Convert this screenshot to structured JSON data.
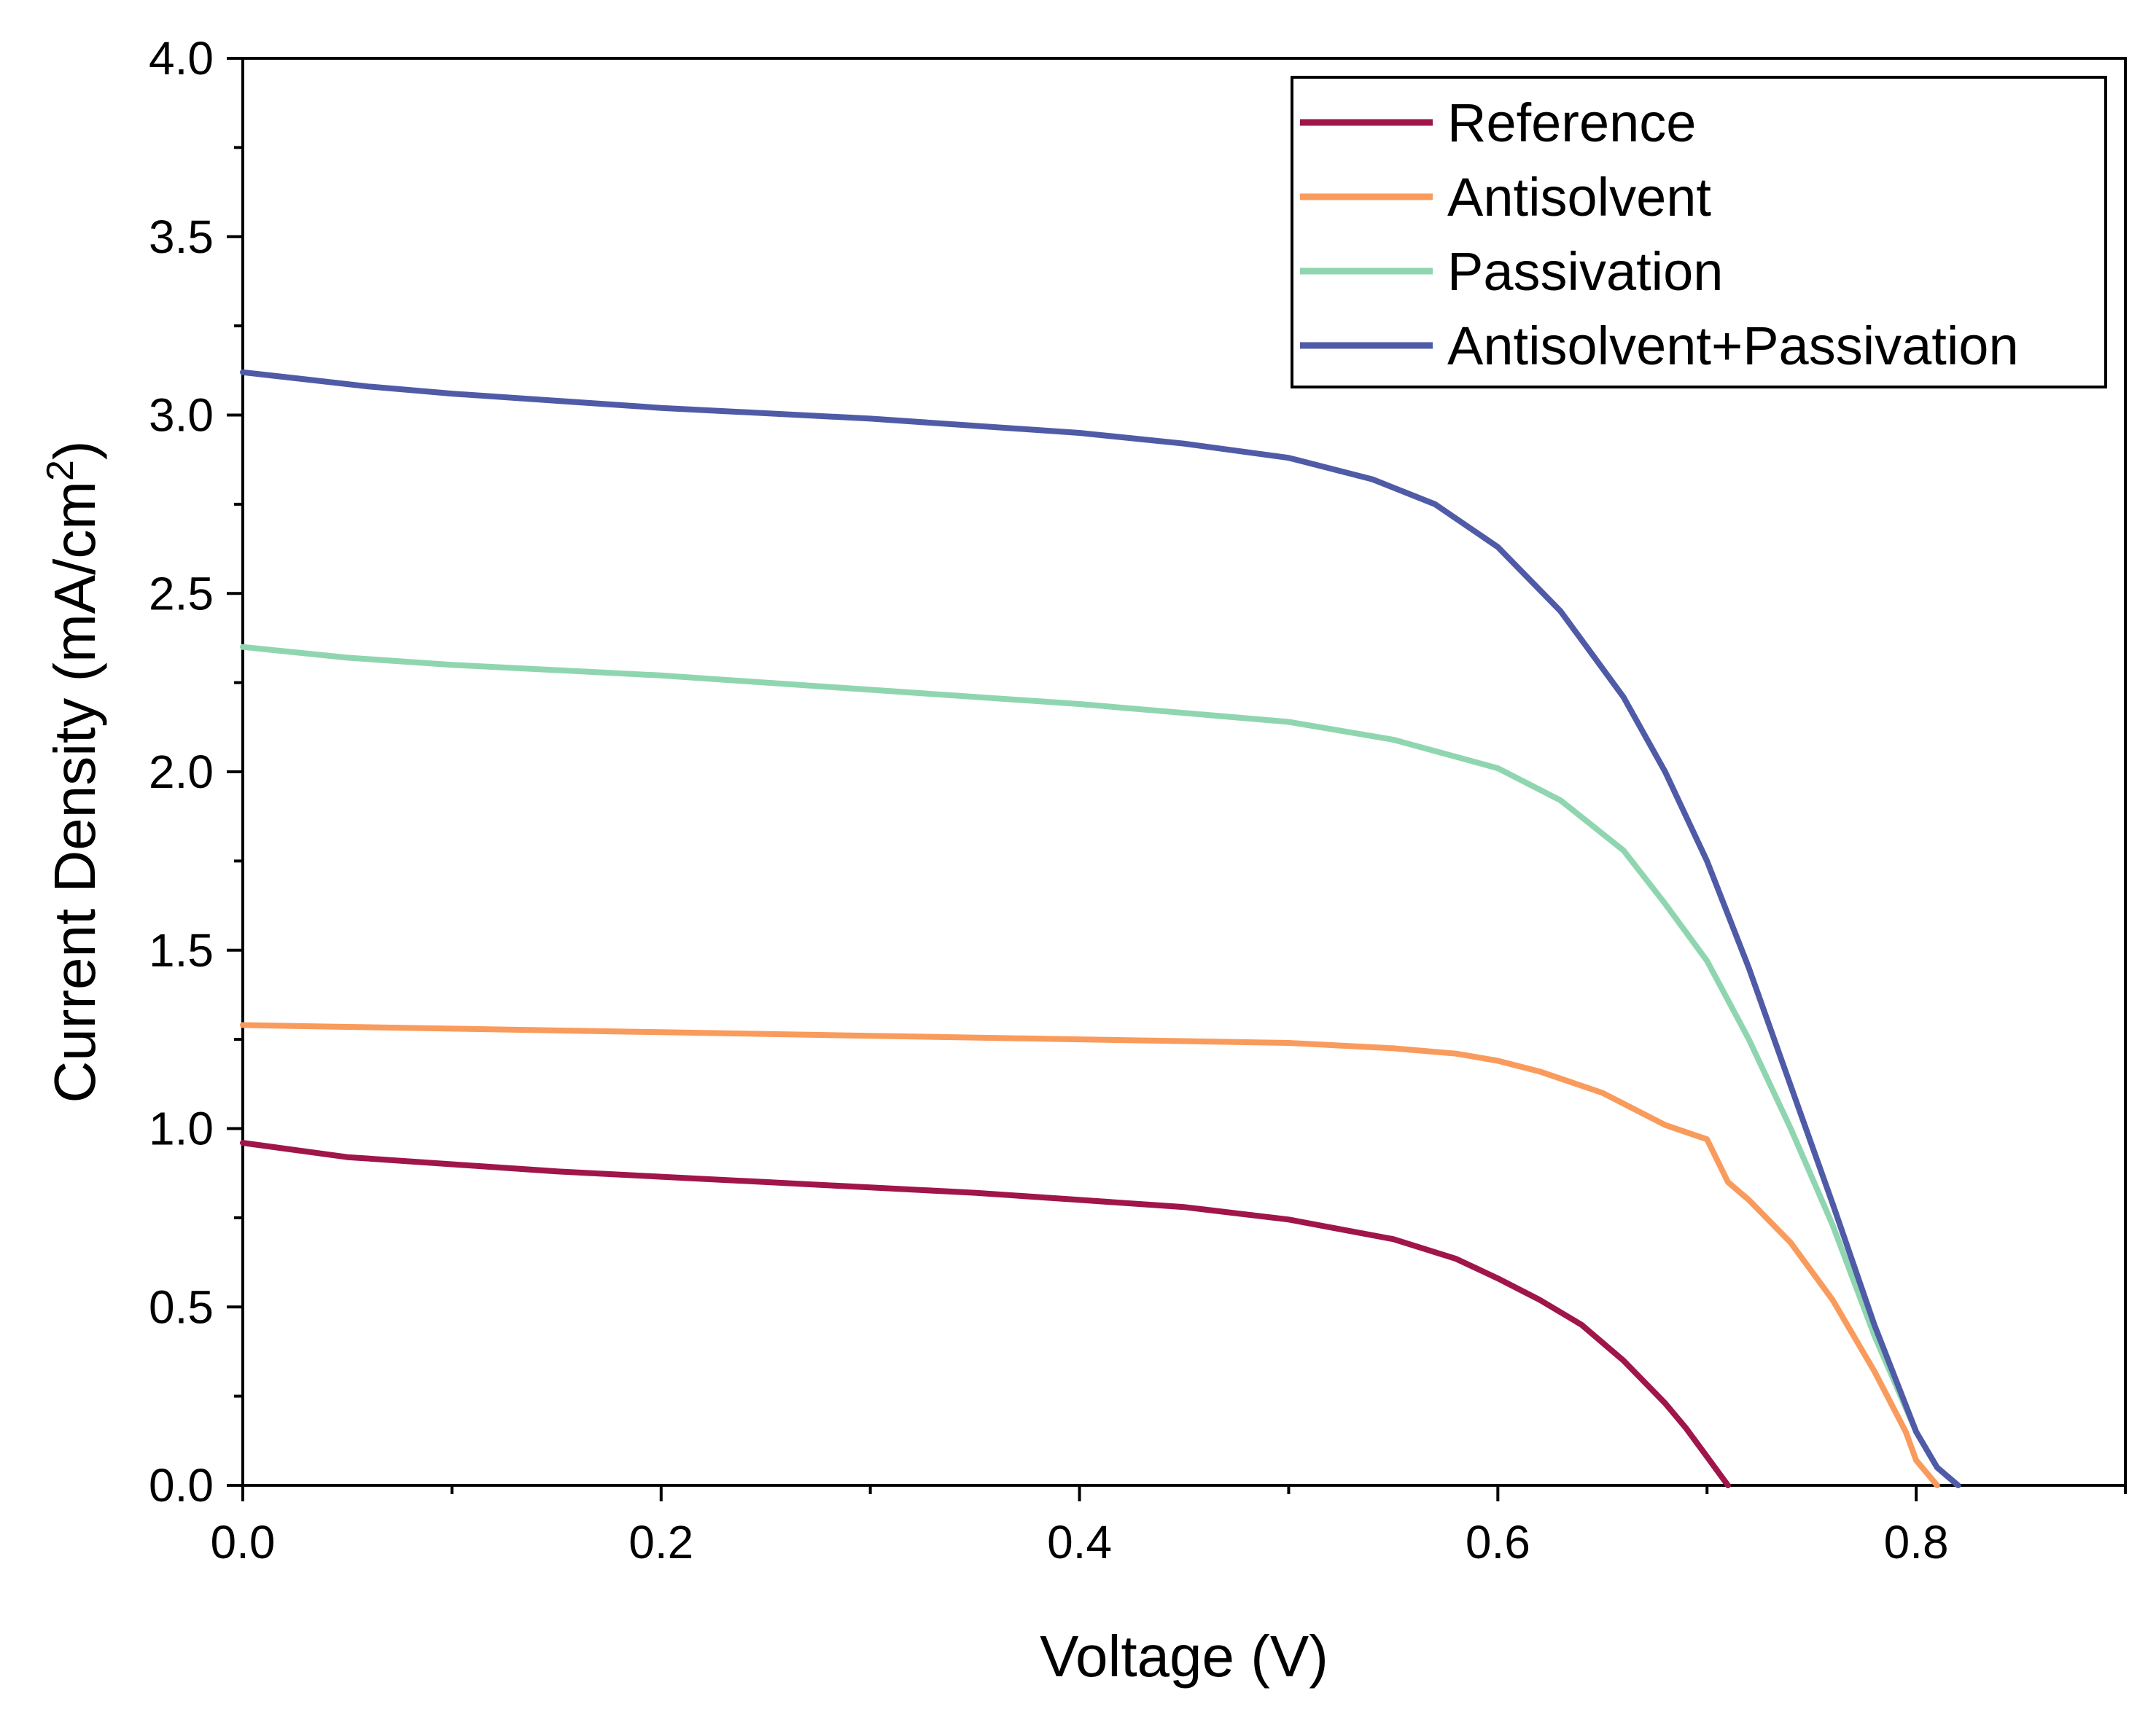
{
  "chart_data": {
    "type": "line",
    "title": "",
    "xlabel": "Voltage (V)",
    "ylabel": "Current Density (mA/cm",
    "ylabel_sup": "2",
    "ylabel_close": ")",
    "xlim": [
      0.0,
      0.9
    ],
    "ylim": [
      0.0,
      4.0
    ],
    "x_ticks": [
      "0.0",
      "0.2",
      "0.4",
      "0.6",
      "0.8"
    ],
    "y_ticks": [
      "0.0",
      "0.5",
      "1.0",
      "1.5",
      "2.0",
      "2.5",
      "3.0",
      "3.5",
      "4.0"
    ],
    "grid": false,
    "legend_position": "top-right",
    "series": [
      {
        "name": "Reference",
        "color": "#A0154A",
        "x": [
          0.0,
          0.05,
          0.1,
          0.15,
          0.2,
          0.25,
          0.3,
          0.35,
          0.4,
          0.45,
          0.5,
          0.55,
          0.58,
          0.6,
          0.62,
          0.64,
          0.66,
          0.68,
          0.69,
          0.7,
          0.71
        ],
        "y": [
          0.96,
          0.92,
          0.9,
          0.88,
          0.865,
          0.85,
          0.835,
          0.82,
          0.8,
          0.78,
          0.745,
          0.69,
          0.635,
          0.58,
          0.52,
          0.45,
          0.35,
          0.23,
          0.16,
          0.08,
          0.0
        ]
      },
      {
        "name": "Antisolvent",
        "color": "#F99B5C",
        "x": [
          0.0,
          0.05,
          0.1,
          0.2,
          0.3,
          0.4,
          0.5,
          0.55,
          0.58,
          0.6,
          0.62,
          0.65,
          0.68,
          0.7,
          0.71,
          0.72,
          0.74,
          0.76,
          0.78,
          0.795,
          0.8,
          0.81
        ],
        "y": [
          1.29,
          1.285,
          1.28,
          1.27,
          1.26,
          1.25,
          1.24,
          1.225,
          1.21,
          1.19,
          1.16,
          1.1,
          1.01,
          0.97,
          0.85,
          0.8,
          0.68,
          0.52,
          0.32,
          0.15,
          0.07,
          0.0
        ]
      },
      {
        "name": "Passivation",
        "color": "#8FD6B0",
        "x": [
          0.0,
          0.05,
          0.1,
          0.2,
          0.3,
          0.4,
          0.5,
          0.55,
          0.6,
          0.63,
          0.66,
          0.68,
          0.7,
          0.72,
          0.74,
          0.76,
          0.78,
          0.8,
          0.81,
          0.82
        ],
        "y": [
          2.35,
          2.32,
          2.3,
          2.27,
          2.23,
          2.19,
          2.14,
          2.09,
          2.01,
          1.92,
          1.78,
          1.63,
          1.47,
          1.25,
          1.0,
          0.73,
          0.42,
          0.15,
          0.05,
          0.0
        ]
      },
      {
        "name": "Antisolvent+Passivation",
        "color": "#4F5BA6",
        "x": [
          0.0,
          0.03,
          0.06,
          0.1,
          0.2,
          0.3,
          0.4,
          0.45,
          0.5,
          0.54,
          0.57,
          0.6,
          0.63,
          0.66,
          0.68,
          0.7,
          0.72,
          0.74,
          0.76,
          0.78,
          0.8,
          0.81,
          0.82
        ],
        "y": [
          3.12,
          3.1,
          3.08,
          3.06,
          3.02,
          2.99,
          2.95,
          2.92,
          2.88,
          2.82,
          2.75,
          2.63,
          2.45,
          2.21,
          2.0,
          1.75,
          1.45,
          1.12,
          0.79,
          0.45,
          0.15,
          0.05,
          0.0
        ]
      }
    ]
  }
}
